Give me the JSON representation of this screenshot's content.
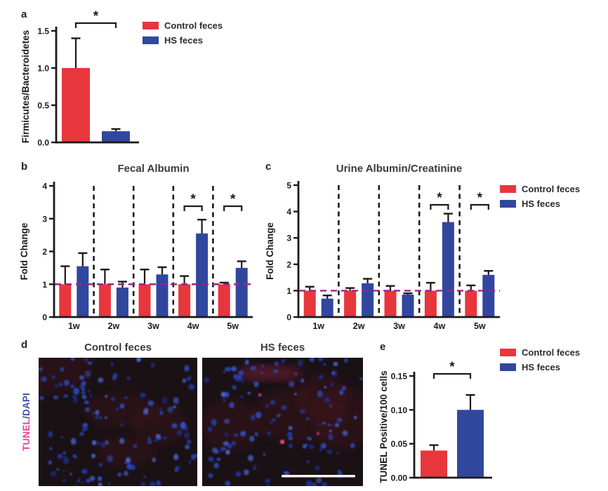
{
  "colors": {
    "bar_red": "#e8363d",
    "bar_blue": "#31479e",
    "axis": "#1a1a1a",
    "title_text": "#3a3a3a",
    "reference_magenta": "#a0208e",
    "tunel_pink": "#e8449a",
    "dapi_blue": "#3c50a8",
    "scale_bar": "#f5f5f0",
    "micro_background": "#1a1115"
  },
  "panels": {
    "a": "a",
    "b": "b",
    "c": "c",
    "d": "d",
    "e": "e"
  },
  "legend": {
    "items": [
      {
        "label": "Control feces",
        "color": "#e8363d"
      },
      {
        "label": "HS feces",
        "color": "#31479e"
      }
    ]
  },
  "panel_d": {
    "row_label_tunel": "TUNEL",
    "row_label_dapi": "/DAPI",
    "images": [
      {
        "title": "Control feces",
        "tunel_positive_dots": 0,
        "has_scale_bar": false
      },
      {
        "title": "HS feces",
        "tunel_positive_dots": 3,
        "has_scale_bar": true
      }
    ]
  },
  "chart_data": [
    {
      "id": "a",
      "type": "bar",
      "title": "",
      "xlabel": "",
      "ylabel": "Firmicutes/Bacteroidetes",
      "categories": [
        "Control feces",
        "HS feces"
      ],
      "values": [
        1.0,
        0.15
      ],
      "errors": [
        0.4,
        0.03
      ],
      "ylim": [
        0,
        1.5
      ],
      "yticks": [
        0,
        0.5,
        1.0,
        1.5
      ],
      "ytick_labels": [
        "0.0",
        "0.5",
        "1.0",
        "1.5"
      ],
      "grid": false,
      "legend_position": "right",
      "sig_pair": true,
      "sig_label": "*"
    },
    {
      "id": "b",
      "type": "bar",
      "title": "Fecal Albumin",
      "xlabel": "",
      "ylabel": "Fold Change",
      "categories": [
        "1w",
        "2w",
        "3w",
        "4w",
        "5w"
      ],
      "series": [
        {
          "name": "Control feces",
          "values": [
            1.0,
            1.0,
            1.0,
            1.0,
            1.0
          ],
          "errors": [
            0.55,
            0.45,
            0.45,
            0.25,
            0.05
          ]
        },
        {
          "name": "HS feces",
          "values": [
            1.55,
            0.9,
            1.3,
            2.55,
            1.5
          ],
          "errors": [
            0.4,
            0.18,
            0.22,
            0.42,
            0.2
          ]
        }
      ],
      "ylim": [
        0,
        4
      ],
      "yticks": [
        0,
        1,
        2,
        3,
        4
      ],
      "ytick_labels": [
        "0",
        "1",
        "2",
        "3",
        "4"
      ],
      "reference_line": 1,
      "group_separators": true,
      "grid": false,
      "sig_groups": [
        3,
        4
      ],
      "sig_label": "*"
    },
    {
      "id": "c",
      "type": "bar",
      "title": "Urine Albumin/Creatinine",
      "xlabel": "",
      "ylabel": "Fold Change",
      "categories": [
        "1w",
        "2w",
        "3w",
        "4w",
        "5w"
      ],
      "series": [
        {
          "name": "Control feces",
          "values": [
            1.0,
            1.0,
            1.0,
            1.0,
            1.0
          ],
          "errors": [
            0.15,
            0.1,
            0.18,
            0.3,
            0.2
          ]
        },
        {
          "name": "HS feces",
          "values": [
            0.7,
            1.28,
            0.85,
            3.6,
            1.6
          ],
          "errors": [
            0.12,
            0.17,
            0.05,
            0.32,
            0.15
          ]
        }
      ],
      "ylim": [
        0,
        5
      ],
      "yticks": [
        0,
        1,
        2,
        3,
        4,
        5
      ],
      "ytick_labels": [
        "0",
        "1",
        "2",
        "3",
        "4",
        "5"
      ],
      "reference_line": 1,
      "group_separators": true,
      "grid": false,
      "legend_position": "right",
      "sig_groups": [
        3,
        4
      ],
      "sig_label": "*"
    },
    {
      "id": "e",
      "type": "bar",
      "title": "",
      "xlabel": "",
      "ylabel": "TUNEL Positive/100 cells",
      "categories": [
        "Control feces",
        "HS feces"
      ],
      "values": [
        0.04,
        0.1
      ],
      "errors": [
        0.008,
        0.022
      ],
      "ylim": [
        0,
        0.15
      ],
      "yticks": [
        0,
        0.05,
        0.1,
        0.15
      ],
      "ytick_labels": [
        "0.00",
        "0.05",
        "0.10",
        "0.15"
      ],
      "grid": false,
      "legend_position": "right",
      "sig_pair": true,
      "sig_label": "*"
    }
  ]
}
